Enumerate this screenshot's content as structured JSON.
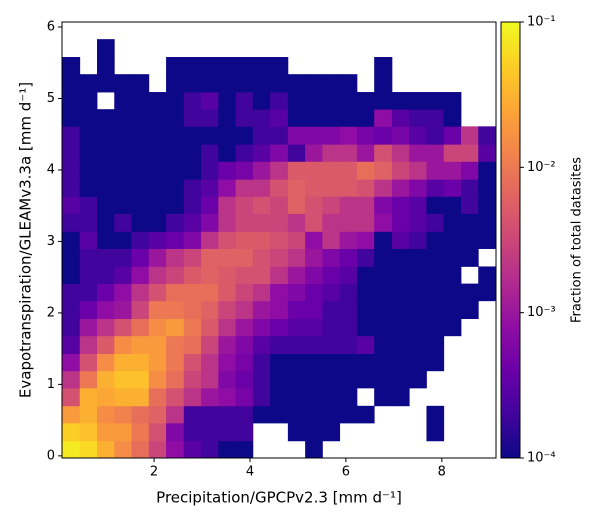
{
  "chart_data": {
    "type": "heatmap",
    "xlabel": "Precipitation/GPCPv2.3 [mm d⁻¹]",
    "ylabel": "Evapotranspiration/GLEAMv3.3a [mm d⁻¹]",
    "colorbar_label": "Fraction of total datasites",
    "colormap": "plasma",
    "color_scale": "log",
    "xlim": [
      0.08,
      9.13
    ],
    "ylim": [
      -0.03,
      6.07
    ],
    "xticks": [
      2,
      4,
      6,
      8
    ],
    "yticks": [
      0,
      1,
      2,
      3,
      4,
      5,
      6
    ],
    "clim": [
      0.0001,
      0.1
    ],
    "cticks": [
      {
        "value": 0.0001,
        "label": "10⁻⁴"
      },
      {
        "value": 0.001,
        "label": "10⁻³"
      },
      {
        "value": 0.01,
        "label": "10⁻²"
      },
      {
        "value": 0.1,
        "label": "10⁻¹"
      }
    ],
    "xbins": [
      0.08,
      0.45,
      0.81,
      1.17,
      1.53,
      1.89,
      2.25,
      2.62,
      2.98,
      3.34,
      3.7,
      4.06,
      4.42,
      4.79,
      5.15,
      5.51,
      5.87,
      6.23,
      6.59,
      6.96,
      7.32,
      7.68,
      8.04,
      8.4,
      8.76,
      9.13
    ],
    "ybins": [
      -0.03,
      0.21,
      0.46,
      0.7,
      0.95,
      1.19,
      1.43,
      1.68,
      1.92,
      2.17,
      2.41,
      2.65,
      2.9,
      3.14,
      3.39,
      3.63,
      3.87,
      4.12,
      4.36,
      4.61,
      4.85,
      5.09,
      5.34,
      5.58,
      5.83,
      6.07
    ],
    "z": [
      [
        0.08,
        0.06,
        0.03,
        0.015,
        0.008,
        0.003,
        0.0008,
        0.0003,
        0.0002,
        0.0001,
        0.0001,
        null,
        null,
        null,
        0.0001,
        null,
        null,
        null,
        null,
        null,
        null,
        null,
        null,
        null,
        null
      ],
      [
        0.05,
        0.04,
        0.02,
        0.02,
        0.01,
        0.004,
        0.0006,
        0.0002,
        0.0002,
        0.0002,
        0.0002,
        null,
        null,
        0.0001,
        0.0001,
        0.0001,
        null,
        null,
        null,
        null,
        null,
        0.0001,
        null,
        null,
        null
      ],
      [
        0.02,
        0.03,
        0.015,
        0.012,
        0.008,
        0.006,
        0.002,
        0.0002,
        0.0002,
        0.0002,
        0.0002,
        0.0001,
        0.0001,
        0.0001,
        0.0001,
        0.0001,
        0.0001,
        0.0001,
        null,
        null,
        null,
        0.0001,
        null,
        null,
        null
      ],
      [
        0.004,
        0.03,
        0.025,
        0.03,
        0.03,
        0.008,
        0.004,
        0.002,
        0.001,
        0.0008,
        0.0005,
        0.0002,
        0.0001,
        0.0001,
        0.0001,
        0.0001,
        0.0001,
        null,
        0.0001,
        0.0001,
        null,
        null,
        null,
        null,
        null
      ],
      [
        0.002,
        0.01,
        0.03,
        0.04,
        0.04,
        0.015,
        0.008,
        0.003,
        0.002,
        0.0006,
        0.0004,
        0.0002,
        0.0001,
        0.0001,
        0.0001,
        0.0001,
        0.0001,
        0.0001,
        0.0001,
        0.0001,
        0.0001,
        null,
        null,
        null,
        null
      ],
      [
        0.0008,
        0.004,
        0.015,
        0.03,
        0.03,
        0.02,
        0.01,
        0.004,
        0.002,
        0.0008,
        0.0005,
        0.0002,
        0.0001,
        0.0001,
        0.0001,
        0.0001,
        0.0001,
        0.0001,
        0.0001,
        0.0001,
        0.0001,
        0.0001,
        null,
        null,
        null
      ],
      [
        0.0003,
        0.002,
        0.005,
        0.015,
        0.02,
        0.02,
        0.01,
        0.008,
        0.003,
        0.001,
        0.0006,
        0.0003,
        0.0002,
        0.0002,
        0.0002,
        0.0002,
        0.0002,
        0.0003,
        0.0001,
        0.0001,
        0.0001,
        0.0001,
        null,
        null,
        null
      ],
      [
        0.0002,
        0.001,
        0.002,
        0.004,
        0.008,
        0.015,
        0.02,
        0.01,
        0.005,
        0.002,
        0.001,
        0.0006,
        0.0004,
        0.0003,
        0.0003,
        0.0002,
        0.0002,
        0.0001,
        0.0001,
        0.0001,
        0.0001,
        0.0001,
        0.0001,
        null,
        null
      ],
      [
        0.0002,
        0.0004,
        0.0008,
        0.001,
        0.003,
        0.01,
        0.01,
        0.008,
        0.006,
        0.003,
        0.002,
        0.001,
        0.0008,
        0.0004,
        0.0004,
        0.0002,
        0.0002,
        0.0001,
        0.0001,
        0.0001,
        0.0001,
        0.0001,
        0.0001,
        0.0001,
        null
      ],
      [
        0.0002,
        0.0002,
        0.0004,
        0.0008,
        0.002,
        0.004,
        0.008,
        0.008,
        0.008,
        0.005,
        0.003,
        0.002,
        0.0008,
        0.0006,
        0.0004,
        0.0003,
        0.0002,
        0.0001,
        0.0001,
        0.0001,
        0.0001,
        0.0001,
        0.0001,
        0.0001,
        0.0001
      ],
      [
        0.0001,
        0.0002,
        0.0002,
        0.0003,
        0.0008,
        0.002,
        0.003,
        0.005,
        0.006,
        0.005,
        0.004,
        0.004,
        0.002,
        0.001,
        0.0006,
        0.0004,
        0.0003,
        0.0001,
        0.0001,
        0.0001,
        0.0001,
        0.0001,
        0.0001,
        null,
        0.0001
      ],
      [
        0.0001,
        0.0002,
        0.0002,
        0.0002,
        0.0004,
        0.001,
        0.002,
        0.003,
        0.006,
        0.006,
        0.006,
        0.004,
        0.003,
        0.002,
        0.001,
        0.0006,
        0.0004,
        0.0002,
        0.0001,
        0.0001,
        0.0001,
        0.0001,
        0.0001,
        0.0001,
        null
      ],
      [
        0.0001,
        0.0003,
        0.0001,
        0.0001,
        0.0002,
        0.0003,
        0.0004,
        0.0006,
        0.002,
        0.004,
        0.005,
        0.005,
        0.004,
        0.003,
        0.0008,
        0.002,
        0.001,
        0.0008,
        0.0001,
        0.0003,
        0.0002,
        0.0001,
        0.0001,
        0.0001,
        0.0001
      ],
      [
        0.0002,
        0.0002,
        0.0001,
        0.0002,
        0.0001,
        0.0001,
        0.0002,
        0.0003,
        0.0006,
        0.002,
        0.003,
        0.003,
        0.003,
        0.002,
        0.004,
        0.002,
        0.002,
        0.002,
        0.0008,
        0.0004,
        0.0003,
        0.0002,
        0.0001,
        0.0001,
        0.0001
      ],
      [
        0.0003,
        0.0002,
        0.0001,
        0.0001,
        0.0001,
        0.0001,
        0.0001,
        0.0002,
        0.0004,
        0.002,
        0.003,
        0.004,
        0.003,
        0.006,
        0.004,
        0.003,
        0.002,
        0.002,
        0.0006,
        0.0004,
        0.0003,
        0.0001,
        0.0001,
        0.0002,
        0.0001
      ],
      [
        0.0002,
        0.0001,
        0.0001,
        0.0001,
        0.0001,
        0.0001,
        0.0001,
        0.0002,
        0.0003,
        0.0008,
        0.002,
        0.002,
        0.004,
        0.006,
        0.005,
        0.005,
        0.005,
        0.004,
        0.002,
        0.001,
        0.0006,
        0.0003,
        0.0004,
        0.0002,
        0.0001
      ],
      [
        0.0002,
        0.0001,
        0.0001,
        0.0001,
        0.0001,
        0.0001,
        0.0001,
        0.0001,
        0.0002,
        0.0004,
        0.0005,
        0.001,
        0.002,
        0.005,
        0.005,
        0.005,
        0.005,
        0.008,
        0.006,
        0.003,
        0.002,
        0.001,
        0.001,
        0.0006,
        0.0001
      ],
      [
        0.0002,
        0.0001,
        0.0001,
        0.0001,
        0.0001,
        0.0001,
        0.0001,
        0.0001,
        0.0002,
        0.0001,
        0.0002,
        0.0003,
        0.0006,
        0.0002,
        0.001,
        0.002,
        0.002,
        0.001,
        0.004,
        0.002,
        0.001,
        0.001,
        0.003,
        0.003,
        0.0003
      ],
      [
        0.0002,
        0.0001,
        0.0001,
        0.0001,
        0.0001,
        0.0001,
        0.0001,
        0.0001,
        0.0001,
        0.0001,
        0.0001,
        0.0002,
        0.0002,
        0.0006,
        0.0006,
        0.0006,
        0.0008,
        0.0005,
        0.0004,
        0.0005,
        0.0003,
        0.0002,
        0.0004,
        0.002,
        0.0002
      ],
      [
        0.0001,
        0.0001,
        0.0001,
        0.0001,
        0.0001,
        0.0001,
        0.0001,
        0.0002,
        0.0002,
        0.0001,
        0.0002,
        0.0002,
        0.0003,
        0.0001,
        0.0001,
        0.0001,
        0.0001,
        0.0001,
        0.0008,
        0.0003,
        0.0002,
        0.0002,
        0.0001,
        null,
        null
      ],
      [
        0.0001,
        0.0001,
        null,
        0.0001,
        0.0001,
        0.0001,
        0.0001,
        0.0002,
        0.0003,
        0.0001,
        0.0002,
        0.0001,
        0.0002,
        0.0001,
        0.0001,
        0.0001,
        0.0001,
        0.0001,
        0.0001,
        0.0001,
        0.0001,
        0.0001,
        0.0001,
        null,
        null
      ],
      [
        0.0001,
        0.0001,
        0.0001,
        0.0001,
        0.0001,
        null,
        0.0001,
        0.0001,
        0.0001,
        0.0001,
        0.0001,
        0.0001,
        0.0001,
        0.0001,
        0.0001,
        0.0001,
        0.0001,
        null,
        0.0001,
        null,
        null,
        null,
        null,
        null,
        null
      ],
      [
        0.0001,
        null,
        0.0001,
        null,
        null,
        null,
        0.0001,
        0.0001,
        0.0001,
        0.0001,
        0.0001,
        0.0001,
        0.0001,
        null,
        null,
        null,
        null,
        null,
        0.0001,
        null,
        null,
        null,
        null,
        null,
        null
      ],
      [
        null,
        null,
        0.0001,
        null,
        null,
        null,
        null,
        null,
        null,
        null,
        null,
        null,
        null,
        null,
        null,
        null,
        null,
        null,
        null,
        null,
        null,
        null,
        null,
        null,
        null
      ],
      [
        null,
        null,
        null,
        null,
        null,
        null,
        null,
        null,
        null,
        null,
        null,
        null,
        null,
        null,
        null,
        null,
        null,
        null,
        null,
        null,
        null,
        null,
        null,
        null,
        null
      ]
    ]
  }
}
